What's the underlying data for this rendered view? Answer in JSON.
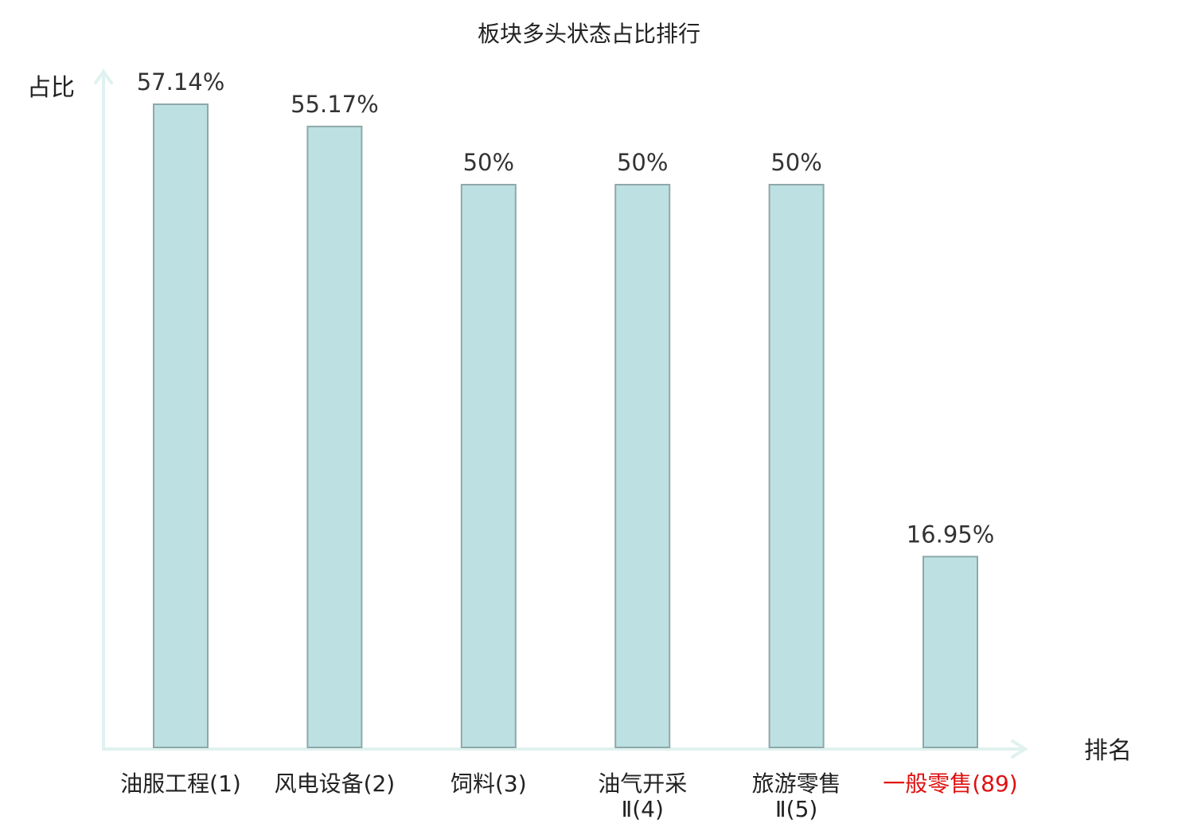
{
  "chart_data": {
    "type": "bar",
    "title": "板块多头状态占比排行",
    "ylabel": "占比",
    "xlabel": "排名",
    "ylim": [
      0,
      62
    ],
    "grid": false,
    "categories": [
      {
        "name_lines": [
          "油服工程(1)"
        ],
        "value": 57.14,
        "label": "57.14%",
        "highlight": false
      },
      {
        "name_lines": [
          "风电设备(2)"
        ],
        "value": 55.17,
        "label": "55.17%",
        "highlight": false
      },
      {
        "name_lines": [
          "饲料(3)"
        ],
        "value": 50,
        "label": "50%",
        "highlight": false
      },
      {
        "name_lines": [
          "油气开采",
          "Ⅱ(4)"
        ],
        "value": 50,
        "label": "50%",
        "highlight": false
      },
      {
        "name_lines": [
          "旅游零售",
          "Ⅱ(5)"
        ],
        "value": 50,
        "label": "50%",
        "highlight": false
      },
      {
        "name_lines": [
          "一般零售(89)"
        ],
        "value": 16.95,
        "label": "16.95%",
        "highlight": true
      }
    ],
    "colors": {
      "bar_fill": "#bde0e3",
      "bar_stroke": "#8fa8a9",
      "axis": "#e0f2ef",
      "text": "#333333",
      "highlight": "#e01010"
    }
  }
}
